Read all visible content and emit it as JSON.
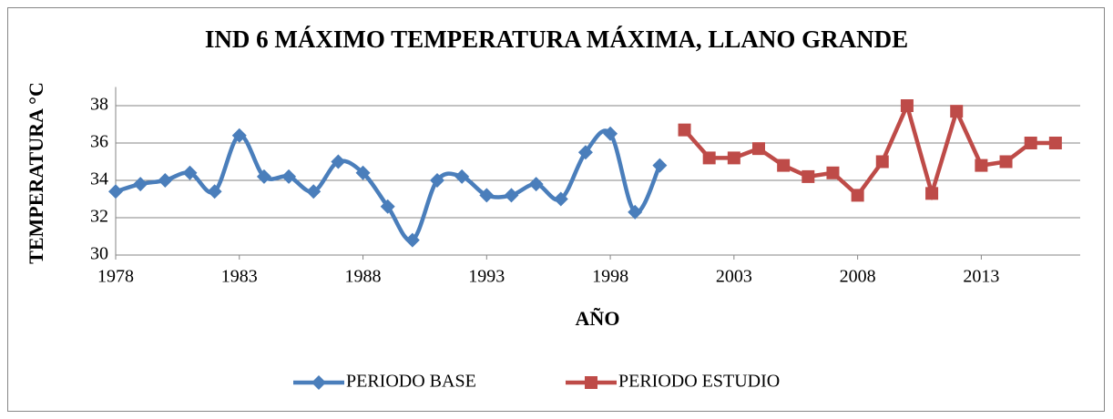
{
  "chart_data": {
    "type": "line",
    "title": "IND 6 MÁXIMO TEMPERATURA MÁXIMA, LLANO GRANDE",
    "x_label": "AÑO",
    "y_label": "TEMPERATURA °C",
    "x": [
      1978,
      1979,
      1980,
      1981,
      1982,
      1983,
      1984,
      1985,
      1986,
      1987,
      1988,
      1989,
      1990,
      1991,
      1992,
      1993,
      1994,
      1995,
      1996,
      1997,
      1998,
      1999,
      2000,
      2001,
      2002,
      2003,
      2004,
      2005,
      2006,
      2007,
      2008,
      2009,
      2010,
      2011,
      2012,
      2013,
      2014,
      2015,
      2016
    ],
    "series": [
      {
        "name": "PERIODO BASE",
        "color": "#4a7ebb",
        "marker": "diamond",
        "smooth": true,
        "values": [
          33.4,
          33.8,
          34.0,
          34.4,
          33.4,
          36.4,
          34.2,
          34.2,
          33.4,
          35.0,
          34.4,
          32.6,
          30.8,
          34.0,
          34.2,
          33.2,
          33.2,
          33.8,
          33.0,
          35.5,
          36.5,
          32.3,
          34.8,
          null,
          null,
          null,
          null,
          null,
          null,
          null,
          null,
          null,
          null,
          null,
          null,
          null,
          null,
          null,
          null
        ]
      },
      {
        "name": "PERIODO ESTUDIO",
        "color": "#be4b48",
        "marker": "square",
        "smooth": false,
        "values": [
          null,
          null,
          null,
          null,
          null,
          null,
          null,
          null,
          null,
          null,
          null,
          null,
          null,
          null,
          null,
          null,
          null,
          null,
          null,
          null,
          null,
          null,
          null,
          36.7,
          35.2,
          35.2,
          35.7,
          34.8,
          34.2,
          34.4,
          33.2,
          35.0,
          38.0,
          33.3,
          37.7,
          34.8,
          35.0,
          36.0,
          36.0
        ]
      }
    ],
    "xlim": [
      1978,
      2017
    ],
    "xticks": [
      1978,
      1983,
      1988,
      1993,
      1998,
      2003,
      2008,
      2013
    ],
    "ylim": [
      30,
      39
    ],
    "yticks": [
      30,
      32,
      34,
      36,
      38
    ],
    "grid": true,
    "legend": "bottom"
  }
}
